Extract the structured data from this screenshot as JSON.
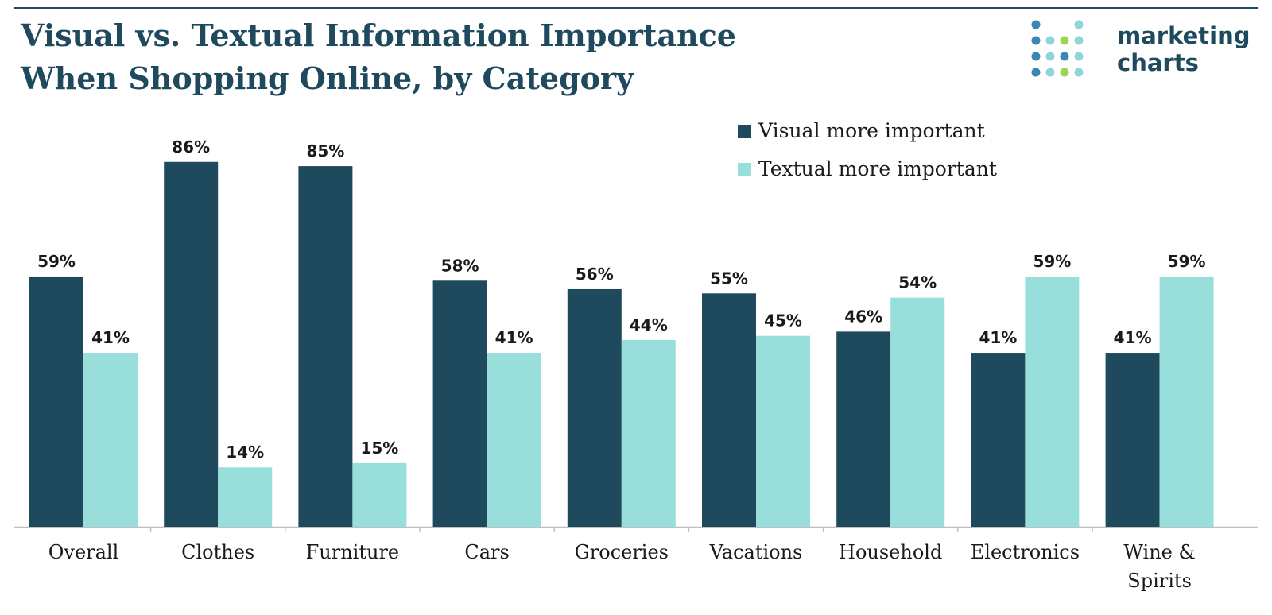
{
  "header": {
    "title_line1": "Visual vs. Textual Information Importance",
    "title_line2": "When Shopping Online, by Category"
  },
  "logo": {
    "line1": "marketing",
    "line2": "charts"
  },
  "colors": {
    "visual": "#1f4a5e",
    "textual": "#98dfdc",
    "title": "#1f4a5e",
    "logo_dot_dark": "#3b86b4",
    "logo_dot_light": "#8fd6d8",
    "logo_dot_green": "#9bd557"
  },
  "chart_data": {
    "type": "bar",
    "title": "Visual vs. Textual Information Importance When Shopping Online, by Category",
    "xlabel": "",
    "ylabel": "",
    "ylim": [
      0,
      100
    ],
    "grid": false,
    "legend_position": "top-right",
    "categories": [
      [
        "Overall"
      ],
      [
        "Clothes"
      ],
      [
        "Furniture"
      ],
      [
        "Cars"
      ],
      [
        "Groceries"
      ],
      [
        "Vacations"
      ],
      [
        "Household"
      ],
      [
        "Electronics"
      ],
      [
        "Wine &",
        "Spirits"
      ]
    ],
    "series": [
      {
        "name": "Visual more important",
        "values": [
          59,
          86,
          85,
          58,
          56,
          55,
          46,
          41,
          41
        ],
        "labels": [
          "59%",
          "86%",
          "85%",
          "58%",
          "56%",
          "55%",
          "46%",
          "41%",
          "41%"
        ]
      },
      {
        "name": "Textual more important",
        "values": [
          41,
          14,
          15,
          41,
          44,
          45,
          54,
          59,
          59
        ],
        "labels": [
          "41%",
          "14%",
          "15%",
          "41%",
          "44%",
          "45%",
          "54%",
          "59%",
          "59%"
        ]
      }
    ]
  }
}
